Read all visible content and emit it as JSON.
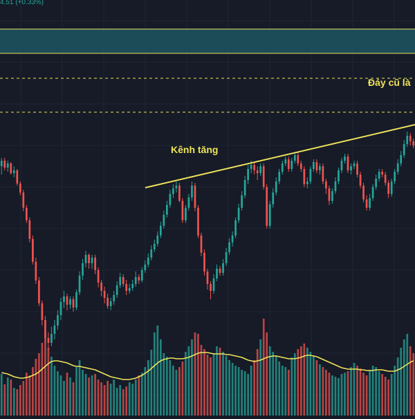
{
  "header": {
    "price_change": "4.51 (+0.33%)"
  },
  "annotations": {
    "channel_label": "Kênh tăng",
    "old_bottom_label": "Đáy cũ là"
  },
  "colors": {
    "background": "#161b27",
    "grid": "#1f2533",
    "up": "#26a69a",
    "down": "#ef5350",
    "annotation": "#f0e35a",
    "zone_fill": "#1e5563",
    "ma_line": "#f0e35a"
  },
  "chart_data": {
    "type": "candlestick",
    "grid": true,
    "candles": [
      [
        240,
        232,
        252,
        228
      ],
      [
        232,
        242,
        246,
        228
      ],
      [
        242,
        236,
        248,
        232
      ],
      [
        236,
        250,
        252,
        234
      ],
      [
        250,
        246,
        256,
        240
      ],
      [
        246,
        265,
        268,
        244
      ],
      [
        265,
        278,
        282,
        262
      ],
      [
        278,
        300,
        305,
        274
      ],
      [
        300,
        318,
        322,
        296
      ],
      [
        318,
        345,
        350,
        314
      ],
      [
        345,
        378,
        382,
        340
      ],
      [
        378,
        405,
        410,
        372
      ],
      [
        405,
        438,
        442,
        400
      ],
      [
        438,
        462,
        470,
        434
      ],
      [
        462,
        488,
        495,
        456
      ],
      [
        488,
        495,
        505,
        480
      ],
      [
        495,
        482,
        500,
        472
      ],
      [
        482,
        470,
        490,
        462
      ],
      [
        470,
        455,
        476,
        448
      ],
      [
        455,
        436,
        462,
        430
      ],
      [
        436,
        428,
        445,
        420
      ],
      [
        428,
        440,
        448,
        424
      ],
      [
        440,
        432,
        446,
        428
      ],
      [
        432,
        444,
        450,
        428
      ],
      [
        444,
        422,
        448,
        418
      ],
      [
        422,
        398,
        426,
        392
      ],
      [
        398,
        380,
        404,
        374
      ],
      [
        380,
        368,
        386,
        362
      ],
      [
        368,
        380,
        388,
        366
      ],
      [
        380,
        372,
        388,
        368
      ],
      [
        372,
        390,
        396,
        368
      ],
      [
        390,
        408,
        415,
        386
      ],
      [
        408,
        420,
        428,
        404
      ],
      [
        420,
        430,
        438,
        414
      ],
      [
        430,
        442,
        446,
        424
      ],
      [
        442,
        435,
        448,
        430
      ],
      [
        435,
        426,
        440,
        420
      ],
      [
        426,
        412,
        430,
        406
      ],
      [
        412,
        400,
        416,
        394
      ],
      [
        400,
        410,
        414,
        396
      ],
      [
        410,
        420,
        426,
        404
      ],
      [
        420,
        416,
        424,
        410
      ],
      [
        416,
        410,
        420,
        404
      ],
      [
        410,
        400,
        414,
        392
      ],
      [
        400,
        405,
        410,
        396
      ],
      [
        405,
        390,
        408,
        386
      ],
      [
        390,
        382,
        394,
        376
      ],
      [
        382,
        372,
        386,
        366
      ],
      [
        372,
        360,
        376,
        354
      ],
      [
        360,
        352,
        364,
        346
      ],
      [
        352,
        340,
        356,
        334
      ],
      [
        340,
        326,
        344,
        320
      ],
      [
        326,
        310,
        330,
        304
      ],
      [
        310,
        296,
        314,
        290
      ],
      [
        296,
        280,
        300,
        274
      ],
      [
        280,
        272,
        286,
        266
      ],
      [
        272,
        268,
        278,
        262
      ],
      [
        268,
        290,
        292,
        264
      ],
      [
        290,
        318,
        322,
        286
      ],
      [
        318,
        300,
        322,
        296
      ],
      [
        300,
        285,
        304,
        280
      ],
      [
        285,
        268,
        290,
        262
      ],
      [
        268,
        300,
        305,
        264
      ],
      [
        300,
        340,
        344,
        296
      ],
      [
        340,
        365,
        370,
        336
      ],
      [
        365,
        392,
        398,
        360
      ],
      [
        392,
        410,
        418,
        388
      ],
      [
        410,
        420,
        432,
        406
      ],
      [
        420,
        402,
        424,
        396
      ],
      [
        402,
        388,
        406,
        382
      ],
      [
        388,
        394,
        398,
        384
      ],
      [
        394,
        380,
        398,
        374
      ],
      [
        380,
        364,
        384,
        358
      ],
      [
        364,
        350,
        368,
        344
      ],
      [
        350,
        340,
        356,
        334
      ],
      [
        340,
        318,
        344,
        314
      ],
      [
        318,
        300,
        322,
        294
      ],
      [
        300,
        282,
        304,
        276
      ],
      [
        282,
        260,
        286,
        254
      ],
      [
        260,
        244,
        266,
        238
      ],
      [
        244,
        238,
        250,
        232
      ],
      [
        238,
        246,
        252,
        234
      ],
      [
        246,
        250,
        260,
        240
      ],
      [
        250,
        240,
        254,
        236
      ],
      [
        240,
        270,
        274,
        236
      ],
      [
        270,
        326,
        330,
        266
      ],
      [
        326,
        295,
        330,
        290
      ],
      [
        295,
        278,
        300,
        272
      ],
      [
        278,
        262,
        282,
        256
      ],
      [
        262,
        248,
        266,
        244
      ],
      [
        248,
        236,
        252,
        232
      ],
      [
        236,
        230,
        240,
        226
      ],
      [
        230,
        244,
        248,
        226
      ],
      [
        244,
        232,
        248,
        228
      ],
      [
        232,
        224,
        236,
        220
      ],
      [
        224,
        236,
        240,
        220
      ],
      [
        236,
        244,
        248,
        232
      ],
      [
        244,
        266,
        270,
        240
      ],
      [
        266,
        262,
        272,
        256
      ],
      [
        262,
        244,
        266,
        240
      ],
      [
        244,
        234,
        248,
        230
      ],
      [
        234,
        246,
        250,
        230
      ],
      [
        246,
        240,
        252,
        236
      ],
      [
        240,
        262,
        266,
        236
      ],
      [
        262,
        272,
        280,
        258
      ],
      [
        272,
        290,
        296,
        268
      ],
      [
        290,
        276,
        294,
        272
      ],
      [
        276,
        262,
        280,
        256
      ],
      [
        262,
        246,
        266,
        242
      ],
      [
        246,
        232,
        250,
        228
      ],
      [
        232,
        226,
        236,
        222
      ],
      [
        226,
        246,
        250,
        222
      ],
      [
        246,
        240,
        252,
        236
      ],
      [
        240,
        236,
        244,
        232
      ],
      [
        236,
        252,
        256,
        232
      ],
      [
        252,
        268,
        272,
        248
      ],
      [
        268,
        288,
        292,
        264
      ],
      [
        288,
        300,
        304,
        282
      ],
      [
        300,
        286,
        304,
        280
      ],
      [
        286,
        270,
        290,
        266
      ],
      [
        270,
        258,
        274,
        252
      ],
      [
        258,
        248,
        262,
        244
      ],
      [
        248,
        252,
        256,
        244
      ],
      [
        252,
        264,
        268,
        248
      ],
      [
        264,
        280,
        286,
        260
      ],
      [
        280,
        262,
        284,
        258
      ],
      [
        262,
        248,
        266,
        244
      ],
      [
        248,
        236,
        252,
        230
      ],
      [
        236,
        224,
        240,
        218
      ],
      [
        224,
        208,
        228,
        202
      ],
      [
        208,
        196,
        212,
        190
      ],
      [
        196,
        204,
        210,
        192
      ],
      [
        204,
        210,
        214,
        200
      ]
    ],
    "volume": [
      60,
      45,
      55,
      52,
      40,
      38,
      44,
      50,
      62,
      58,
      70,
      82,
      90,
      105,
      120,
      98,
      85,
      72,
      64,
      58,
      50,
      62,
      55,
      48,
      70,
      80,
      66,
      60,
      55,
      58,
      60,
      52,
      48,
      44,
      50,
      46,
      52,
      40,
      44,
      38,
      42,
      48,
      46,
      52,
      58,
      62,
      70,
      80,
      95,
      120,
      130,
      110,
      90,
      85,
      80,
      72,
      66,
      70,
      78,
      92,
      100,
      110,
      120,
      118,
      102,
      96,
      88,
      84,
      90,
      100,
      98,
      92,
      86,
      80,
      76,
      72,
      70,
      66,
      64,
      60,
      72,
      80,
      96,
      110,
      140,
      120,
      100,
      92,
      86,
      78,
      72,
      70,
      66,
      84,
      90,
      96,
      100,
      104,
      98,
      92,
      86,
      80,
      74,
      70,
      66,
      62,
      58,
      56,
      54,
      60,
      62,
      64,
      70,
      76,
      72,
      68,
      62,
      58,
      66,
      72,
      70,
      64,
      60,
      56,
      52,
      60,
      72,
      84,
      98,
      110,
      118,
      100,
      90
    ],
    "ma": [
      62,
      61,
      60,
      58,
      56,
      55,
      54,
      54,
      55,
      56,
      58,
      60,
      63,
      67,
      71,
      75,
      78,
      79,
      79,
      78,
      77,
      76,
      74,
      72,
      71,
      71,
      70,
      69,
      68,
      67,
      66,
      64,
      62,
      60,
      58,
      56,
      55,
      54,
      53,
      52,
      52,
      52,
      53,
      54,
      56,
      58,
      61,
      64,
      68,
      72,
      76,
      79,
      81,
      82,
      83,
      83,
      82,
      82,
      82,
      83,
      84,
      86,
      88,
      90,
      91,
      91,
      91,
      90,
      89,
      89,
      89,
      89,
      88,
      88,
      87,
      86,
      85,
      84,
      82,
      80,
      79,
      78,
      79,
      80,
      82,
      84,
      85,
      86,
      86,
      85,
      84,
      83,
      82,
      82,
      82,
      83,
      84,
      86,
      87,
      87,
      86,
      85,
      83,
      81,
      79,
      77,
      75,
      73,
      71,
      69,
      68,
      67,
      67,
      67,
      67,
      66,
      66,
      65,
      65,
      65,
      66,
      66,
      66,
      65,
      64,
      64,
      64,
      66,
      68,
      71,
      74,
      77,
      79
    ]
  }
}
